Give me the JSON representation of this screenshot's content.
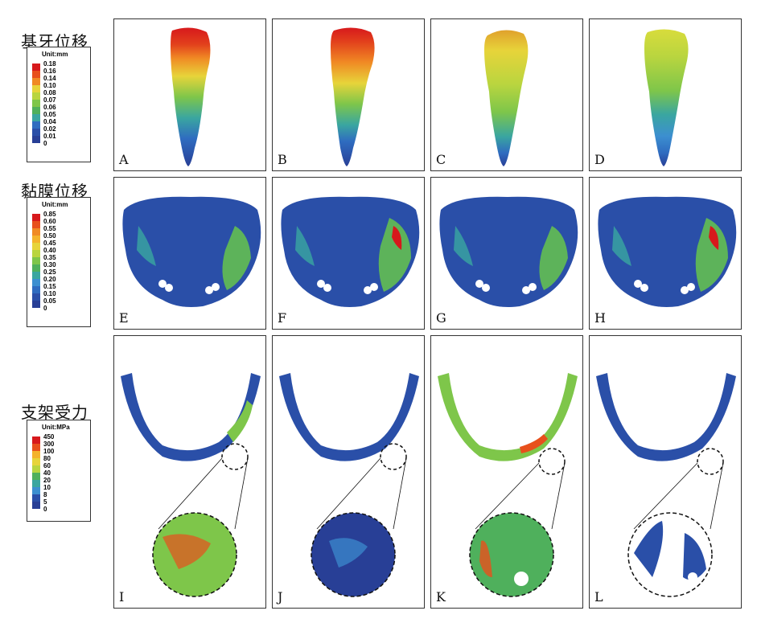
{
  "rows": [
    {
      "title": "基牙位移",
      "unit": "Unit:mm",
      "ticks": [
        "0.18",
        "0.16",
        "0.14",
        "0.10",
        "0.08",
        "0.07",
        "0.06",
        "0.05",
        "0.04",
        "0.02",
        "0.01",
        "0"
      ],
      "panels": [
        "A",
        "B",
        "C",
        "D"
      ]
    },
    {
      "title": "黏膜位移",
      "unit": "Unit:mm",
      "ticks": [
        "0.85",
        "0.60",
        "0.55",
        "0.50",
        "0.45",
        "0.40",
        "0.35",
        "0.30",
        "0.25",
        "0.20",
        "0.15",
        "0.10",
        "0.05",
        "0"
      ],
      "panels": [
        "E",
        "F",
        "G",
        "H"
      ]
    },
    {
      "title": "支架受力",
      "unit": "Unit:MPa",
      "ticks": [
        "450",
        "300",
        "100",
        "80",
        "60",
        "40",
        "20",
        "10",
        "8",
        "5",
        "0"
      ],
      "panels": [
        "I",
        "J",
        "K",
        "L"
      ]
    }
  ],
  "colors": {
    "scale": [
      "#d7191c",
      "#e8501c",
      "#f08a24",
      "#f4b32c",
      "#e7d43a",
      "#b9d53f",
      "#7ec64a",
      "#4fb05c",
      "#3aa6a0",
      "#3c8fd0",
      "#2f6cc0",
      "#2a4fa8",
      "#283f96"
    ]
  }
}
